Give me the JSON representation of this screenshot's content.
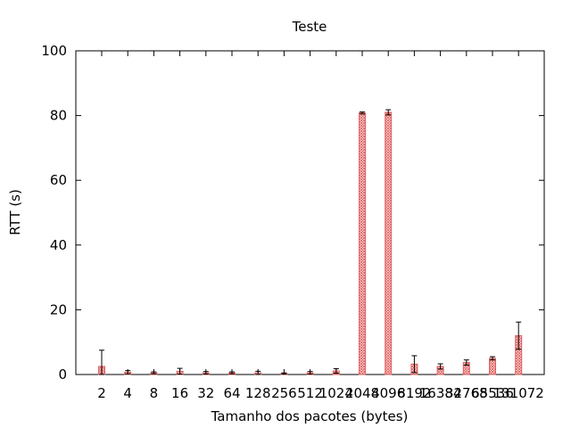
{
  "chart_data": {
    "type": "bar",
    "title": "Teste",
    "xlabel": "Tamanho dos pacotes (bytes)",
    "ylabel": "RTT (s)",
    "ylim": [
      0,
      100
    ],
    "yticks": [
      0,
      20,
      40,
      60,
      80,
      100
    ],
    "grid": false,
    "legend": "none",
    "bar_color": "#e06060",
    "bar_pattern": "crosshatch",
    "categories": [
      "2",
      "4",
      "8",
      "16",
      "32",
      "64",
      "128",
      "256",
      "512",
      "1024",
      "2048",
      "4096",
      "8192",
      "16384",
      "32768",
      "65536",
      "131072"
    ],
    "values": [
      2.5,
      0.7,
      0.5,
      1.0,
      0.5,
      0.5,
      0.5,
      0.3,
      0.5,
      1.1,
      80.8,
      81.0,
      3.2,
      2.5,
      3.7,
      5.0,
      12.0
    ],
    "errors": [
      5.0,
      0.5,
      0.3,
      0.9,
      0.4,
      0.3,
      0.5,
      0.2,
      0.4,
      0.7,
      0.3,
      0.8,
      2.6,
      0.8,
      0.8,
      0.5,
      4.2
    ]
  }
}
